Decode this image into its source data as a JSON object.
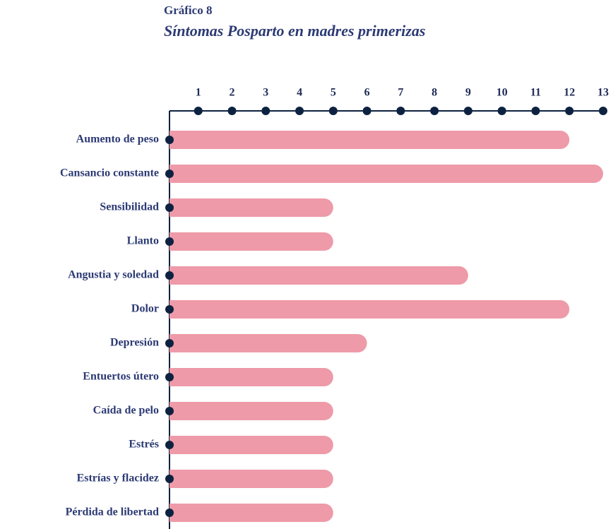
{
  "chart_data": {
    "type": "bar",
    "orientation": "horizontal",
    "title": "Gráfico 8",
    "subtitle": "Síntomas Posparto en madres primerizas",
    "categories": [
      "Aumento de peso",
      "Cansancio constante",
      "Sensibilidad",
      "Llanto",
      "Angustia y soledad",
      "Dolor",
      "Depresión",
      "Entuertos útero",
      "Caída de pelo",
      "Estrés",
      "Estrías y flacidez",
      "Pérdida de libertad"
    ],
    "values": [
      12,
      13,
      5,
      5,
      9,
      12,
      6,
      5,
      5,
      5,
      5,
      5
    ],
    "color": "#ee9aa8",
    "xlim": [
      0,
      13
    ],
    "xticks": [
      1,
      2,
      3,
      4,
      5,
      6,
      7,
      8,
      9,
      10,
      11,
      12,
      13
    ]
  }
}
